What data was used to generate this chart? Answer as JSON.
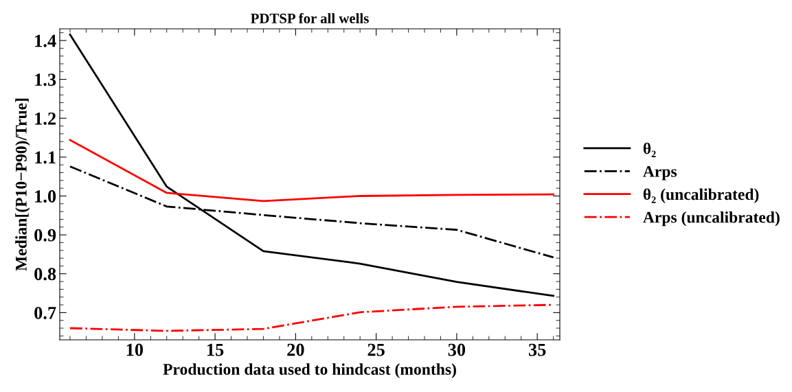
{
  "chart_data": {
    "type": "line",
    "title": "PDTSP for all wells",
    "xlabel": "Production data used to hindcast (months)",
    "ylabel": "Median[(P10−P90)/True]",
    "x": [
      6,
      12,
      18,
      24,
      30,
      36
    ],
    "series": [
      {
        "name": "θ₂",
        "color": "#000000",
        "line_style": "solid",
        "values": [
          1.415,
          1.024,
          0.858,
          0.826,
          0.779,
          0.743
        ]
      },
      {
        "name": "Arps",
        "color": "#000000",
        "line_style": "dashdot",
        "values": [
          1.076,
          0.973,
          0.951,
          0.93,
          0.913,
          0.842
        ]
      },
      {
        "name": "θ₂ (uncalibrated)",
        "color": "#ff0000",
        "line_style": "solid",
        "values": [
          1.144,
          1.008,
          0.987,
          1.0,
          1.003,
          1.004
        ]
      },
      {
        "name": "Arps (uncalibrated)",
        "color": "#ff0000",
        "line_style": "dashdot",
        "values": [
          0.66,
          0.653,
          0.658,
          0.701,
          0.715,
          0.72
        ]
      }
    ],
    "xlim": [
      5.36,
      36.4
    ],
    "ylim": [
      0.63,
      1.43
    ],
    "xticks": [
      10,
      15,
      20,
      25,
      30,
      35
    ],
    "yticks": [
      {
        "value": 0.7,
        "label": "0.7"
      },
      {
        "value": 0.8,
        "label": "0.8"
      },
      {
        "value": 0.9,
        "label": "0.9"
      },
      {
        "value": 1.0,
        "label": "1.0"
      },
      {
        "value": 1.1,
        "label": "1.1"
      },
      {
        "value": 1.2,
        "label": "1.2"
      },
      {
        "value": 1.3,
        "label": "1.3"
      },
      {
        "value": 1.4,
        "label": "1.4"
      }
    ],
    "grid": false,
    "legend": "right",
    "marker": "none"
  }
}
